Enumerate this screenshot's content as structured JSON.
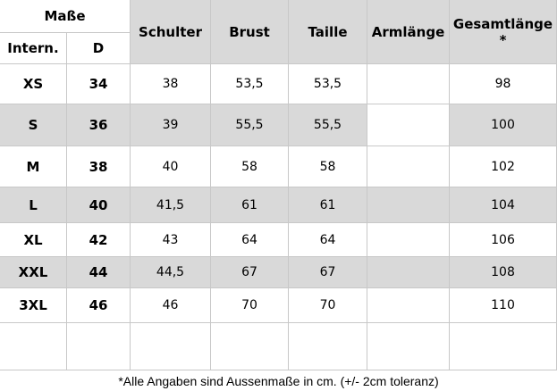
{
  "table": {
    "header": {
      "group": "Maße",
      "intern": "Intern.",
      "d": "D",
      "columns": [
        "Schulter",
        "Brust",
        "Taille",
        "Armlänge",
        "Gesamtlänge\n*"
      ]
    },
    "rows": [
      [
        "XS",
        "34",
        "38",
        "53,5",
        "53,5",
        "98"
      ],
      [
        "S",
        "36",
        "39",
        "55,5",
        "55,5",
        "100"
      ],
      [
        "M",
        "38",
        "40",
        "58",
        "58",
        "102"
      ],
      [
        "L",
        "40",
        "41,5",
        "61",
        "61",
        "104"
      ],
      [
        "XL",
        "42",
        "43",
        "64",
        "64",
        "106"
      ],
      [
        "XXL",
        "44",
        "44,5",
        "67",
        "67",
        "108"
      ],
      [
        "3XL",
        "46",
        "46",
        "70",
        "70",
        "110"
      ]
    ],
    "footnote": "*Alle Angaben sind Aussenmaße in cm. (+/- 2cm toleranz)"
  }
}
